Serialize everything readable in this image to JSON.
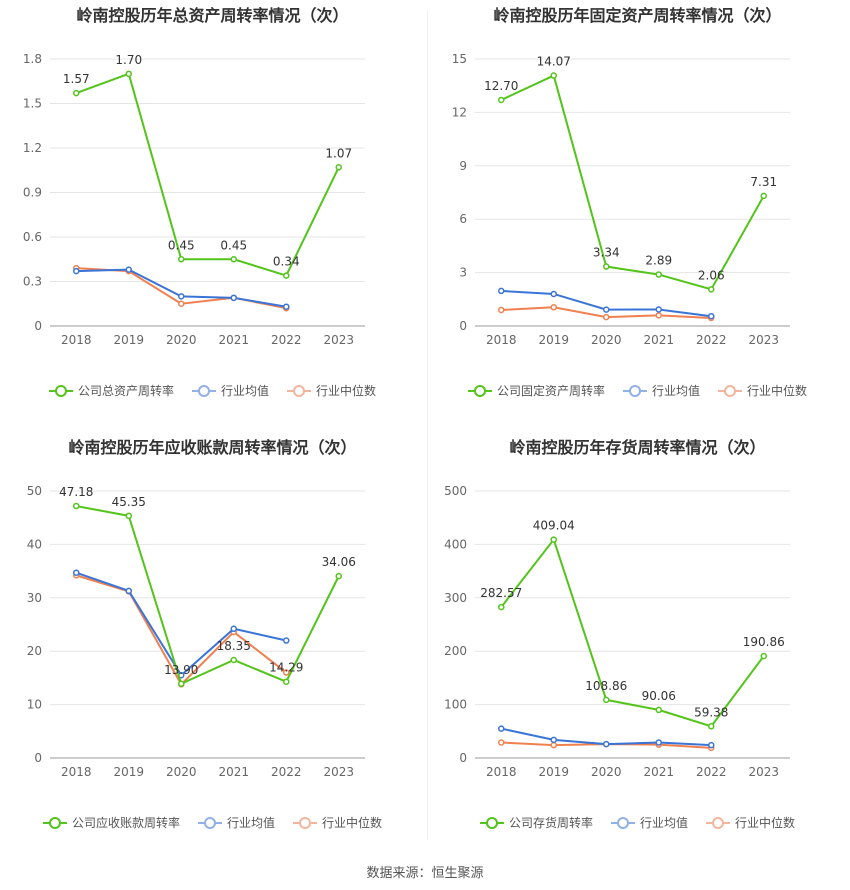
{
  "source": "数据来源：恒生聚源",
  "chart_data": [
    {
      "type": "line",
      "title": "岭南控股历年总资产周转率情况（次）",
      "categories": [
        "2018",
        "2019",
        "2020",
        "2021",
        "2022",
        "2023"
      ],
      "ylim": [
        0,
        1.8
      ],
      "yticks": [
        "0",
        "0.3",
        "0.6",
        "0.9",
        "1.2",
        "1.5",
        "1.8"
      ],
      "ytick_values": [
        0,
        0.3,
        0.6,
        0.9,
        1.2,
        1.5,
        1.8
      ],
      "series": [
        {
          "name": "公司总资产周转率",
          "color": "#52c41a",
          "values": [
            1.57,
            1.7,
            0.45,
            0.45,
            0.34,
            1.07
          ],
          "labels": [
            "1.57",
            "1.70",
            "0.45",
            "0.45",
            "0.34",
            "1.07"
          ]
        },
        {
          "name": "行业均值",
          "color": "#3a74d6",
          "values": [
            0.37,
            0.38,
            0.2,
            0.19,
            0.13,
            null
          ]
        },
        {
          "name": "行业中位数",
          "color": "#f08050",
          "values": [
            0.39,
            0.37,
            0.15,
            0.19,
            0.12,
            null
          ]
        }
      ],
      "legend": "bottom"
    },
    {
      "type": "line",
      "title": "岭南控股历年固定资产周转率情况（次）",
      "categories": [
        "2018",
        "2019",
        "2020",
        "2021",
        "2022",
        "2023"
      ],
      "ylim": [
        0,
        15
      ],
      "yticks": [
        "0",
        "3",
        "6",
        "9",
        "12",
        "15"
      ],
      "ytick_values": [
        0,
        3,
        6,
        9,
        12,
        15
      ],
      "series": [
        {
          "name": "公司固定资产周转率",
          "color": "#52c41a",
          "values": [
            12.7,
            14.07,
            3.34,
            2.89,
            2.06,
            7.31
          ],
          "labels": [
            "12.70",
            "14.07",
            "3.34",
            "2.89",
            "2.06",
            "7.31"
          ]
        },
        {
          "name": "行业均值",
          "color": "#3a74d6",
          "values": [
            1.97,
            1.8,
            0.92,
            0.93,
            0.55,
            null
          ]
        },
        {
          "name": "行业中位数",
          "color": "#f08050",
          "values": [
            0.9,
            1.05,
            0.5,
            0.6,
            0.45,
            null
          ]
        }
      ],
      "legend": "bottom"
    },
    {
      "type": "line",
      "title": "岭南控股历年应收账款周转率情况（次）",
      "categories": [
        "2018",
        "2019",
        "2020",
        "2021",
        "2022",
        "2023"
      ],
      "ylim": [
        0,
        50
      ],
      "yticks": [
        "0",
        "10",
        "20",
        "30",
        "40",
        "50"
      ],
      "ytick_values": [
        0,
        10,
        20,
        30,
        40,
        50
      ],
      "series": [
        {
          "name": "公司应收账款周转率",
          "color": "#52c41a",
          "values": [
            47.18,
            45.35,
            13.9,
            18.35,
            14.29,
            34.06
          ],
          "labels": [
            "47.18",
            "45.35",
            "13.90",
            "18.35",
            "14.29",
            "34.06"
          ]
        },
        {
          "name": "行业均值",
          "color": "#3a74d6",
          "values": [
            34.7,
            31.3,
            15.5,
            24.2,
            22.0,
            null
          ]
        },
        {
          "name": "行业中位数",
          "color": "#f08050",
          "values": [
            34.2,
            31.2,
            13.8,
            23.6,
            16.0,
            null
          ]
        }
      ],
      "legend": "bottom"
    },
    {
      "type": "line",
      "title": "岭南控股历年存货周转率情况（次）",
      "categories": [
        "2018",
        "2019",
        "2020",
        "2021",
        "2022",
        "2023"
      ],
      "ylim": [
        0,
        500
      ],
      "yticks": [
        "0",
        "100",
        "200",
        "300",
        "400",
        "500"
      ],
      "ytick_values": [
        0,
        100,
        200,
        300,
        400,
        500
      ],
      "series": [
        {
          "name": "公司存货周转率",
          "color": "#52c41a",
          "values": [
            282.57,
            409.04,
            108.86,
            90.06,
            59.38,
            190.86
          ],
          "labels": [
            "282.57",
            "409.04",
            "108.86",
            "90.06",
            "59.38",
            "190.86"
          ]
        },
        {
          "name": "行业均值",
          "color": "#3a74d6",
          "values": [
            55,
            34,
            26,
            29,
            24,
            null
          ]
        },
        {
          "name": "行业中位数",
          "color": "#f08050",
          "values": [
            29,
            24,
            26,
            25,
            19,
            null
          ]
        }
      ],
      "legend": "bottom"
    }
  ]
}
